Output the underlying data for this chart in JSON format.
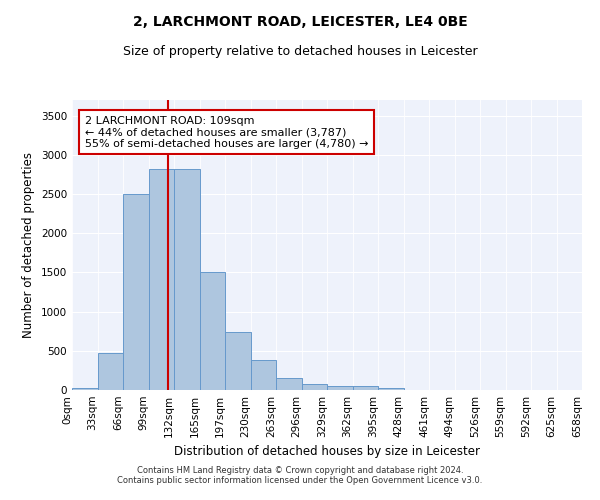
{
  "title": "2, LARCHMONT ROAD, LEICESTER, LE4 0BE",
  "subtitle": "Size of property relative to detached houses in Leicester",
  "xlabel": "Distribution of detached houses by size in Leicester",
  "ylabel": "Number of detached properties",
  "footnote1": "Contains HM Land Registry data © Crown copyright and database right 2024.",
  "footnote2": "Contains public sector information licensed under the Open Government Licence v3.0.",
  "annotation_line1": "2 LARCHMONT ROAD: 109sqm",
  "annotation_line2": "← 44% of detached houses are smaller (3,787)",
  "annotation_line3": "55% of semi-detached houses are larger (4,780) →",
  "bar_values": [
    30,
    470,
    2500,
    2820,
    2820,
    1500,
    740,
    380,
    150,
    80,
    50,
    50,
    30,
    0,
    0,
    0,
    0,
    0,
    0,
    0
  ],
  "bin_labels": [
    "0sqm",
    "33sqm",
    "66sqm",
    "99sqm",
    "132sqm",
    "165sqm",
    "197sqm",
    "230sqm",
    "263sqm",
    "296sqm",
    "329sqm",
    "362sqm",
    "395sqm",
    "428sqm",
    "461sqm",
    "494sqm",
    "526sqm",
    "559sqm",
    "592sqm",
    "625sqm",
    "658sqm"
  ],
  "bar_color": "#aec6df",
  "bar_edge_color": "#6699cc",
  "redline_x": 3,
  "ylim": [
    0,
    3700
  ],
  "yticks": [
    0,
    500,
    1000,
    1500,
    2000,
    2500,
    3000,
    3500
  ],
  "bg_color": "#eef2fb",
  "box_color": "#cc0000",
  "title_fontsize": 10,
  "subtitle_fontsize": 9,
  "axis_label_fontsize": 8.5,
  "tick_fontsize": 7.5,
  "annotation_fontsize": 8
}
